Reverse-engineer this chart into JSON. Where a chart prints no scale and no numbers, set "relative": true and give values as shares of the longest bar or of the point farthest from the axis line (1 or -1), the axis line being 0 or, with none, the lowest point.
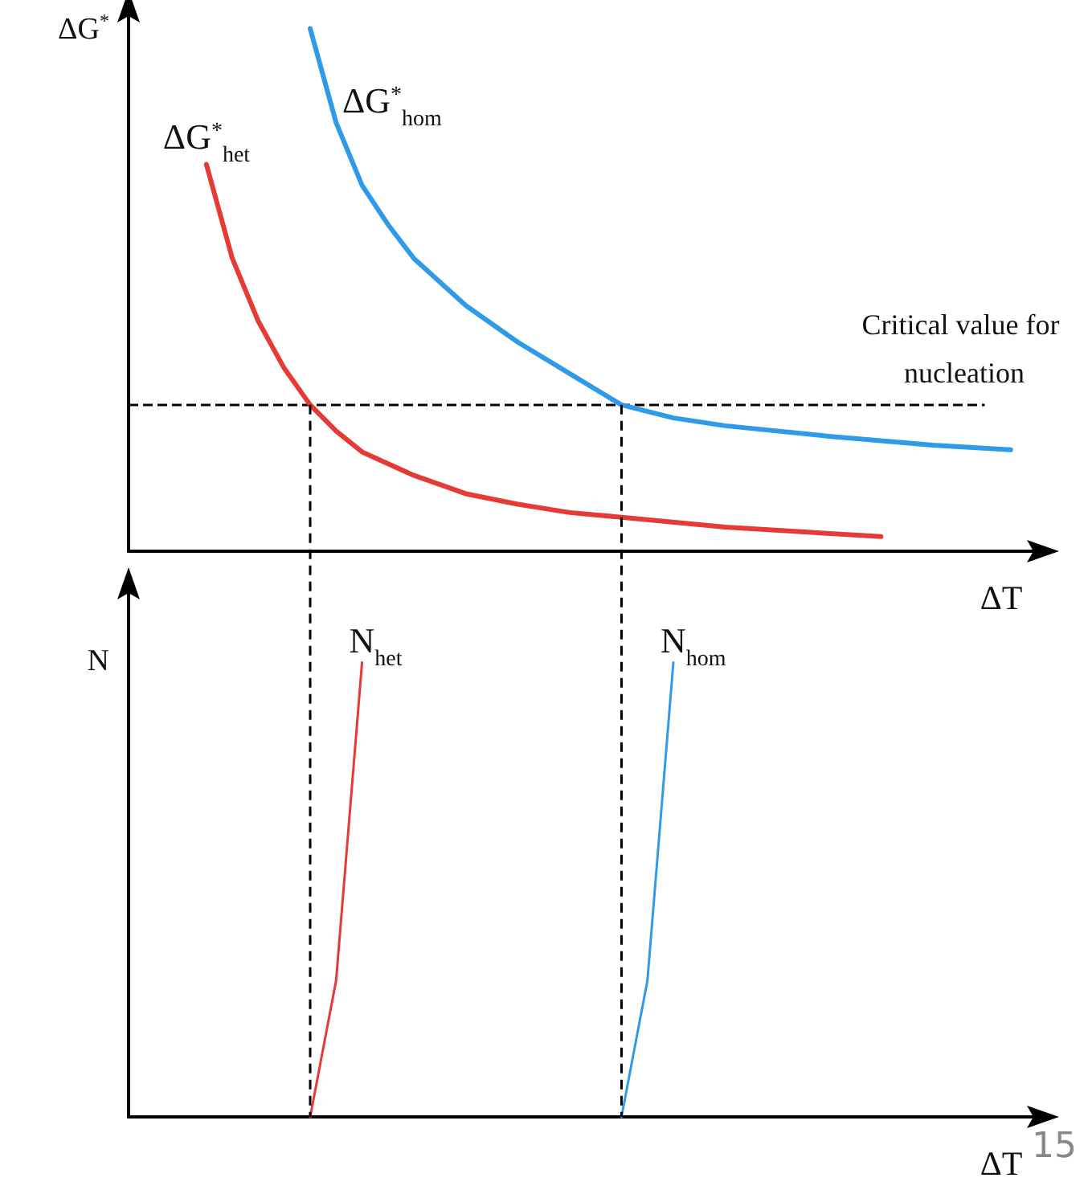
{
  "chart_data": [
    {
      "type": "line",
      "relative": true,
      "ylabel": "ΔG$^{*}$",
      "xlabel": "ΔT",
      "grid": false,
      "marker": "none",
      "line_style": "solid",
      "categories": [
        null,
        null,
        null,
        null,
        null,
        null,
        null,
        null,
        null,
        null,
        null,
        null,
        null,
        null,
        null,
        null,
        null,
        null,
        null,
        null,
        null,
        null,
        null,
        null,
        null,
        null,
        null,
        null,
        null,
        null,
        null,
        null,
        null,
        null,
        null,
        null
      ],
      "series": [
        {
          "name": "ΔG$^{*}$$_{het}$",
          "color": "#e53a35",
          "values": [
            null,
            null,
            null,
            0.74,
            0.56,
            0.44,
            0.35,
            0.28,
            0.23,
            0.19,
            null,
            0.145,
            null,
            0.11,
            null,
            0.09,
            null,
            0.074,
            null,
            0.065,
            null,
            null,
            null,
            0.046,
            null,
            null,
            null,
            null,
            null,
            0.028,
            null,
            null,
            null,
            null,
            null,
            null
          ]
        },
        {
          "name": "ΔG$^{*}$$_{hom}$",
          "color": "#2f9be8",
          "values": [
            null,
            null,
            null,
            null,
            null,
            null,
            null,
            1.0,
            0.82,
            0.7,
            0.625,
            0.56,
            0.515,
            0.47,
            null,
            0.4,
            null,
            0.34,
            null,
            0.28,
            null,
            0.255,
            null,
            0.24,
            null,
            null,
            null,
            0.22,
            null,
            null,
            null,
            0.203,
            null,
            null,
            0.194,
            null
          ]
        }
      ],
      "ref_lines": [
        {
          "axis": "y",
          "value": 0.28,
          "label": "Critical value for nucleation",
          "color": "#000000",
          "line_style": "dashed"
        }
      ]
    },
    {
      "type": "line",
      "relative": true,
      "ylabel": "N",
      "xlabel": "ΔT",
      "grid": false,
      "marker": "none",
      "line_style": "solid",
      "categories": [
        null,
        null,
        null,
        null,
        null,
        null,
        null,
        null,
        null,
        null,
        null,
        null,
        null,
        null,
        null,
        null,
        null,
        null,
        null,
        null,
        null,
        null,
        null,
        null,
        null,
        null,
        null,
        null,
        null,
        null,
        null,
        null,
        null,
        null,
        null,
        null
      ],
      "series": [
        {
          "name": "N$_{het}$",
          "color": "#e53a35",
          "values": [
            null,
            null,
            null,
            null,
            null,
            null,
            null,
            0,
            0.3,
            1.0,
            null,
            null,
            null,
            null,
            null,
            null,
            null,
            null,
            null,
            null,
            null,
            null,
            null,
            null,
            null,
            null,
            null,
            null,
            null,
            null,
            null,
            null,
            null,
            null,
            null,
            null
          ]
        },
        {
          "name": "N$_{hom}$",
          "color": "#2f9be8",
          "values": [
            null,
            null,
            null,
            null,
            null,
            null,
            null,
            null,
            null,
            null,
            null,
            null,
            null,
            null,
            null,
            null,
            null,
            null,
            null,
            0,
            0.3,
            1.0,
            null,
            null,
            null,
            null,
            null,
            null,
            null,
            null,
            null,
            null,
            null,
            null,
            null,
            null
          ]
        }
      ],
      "annotations": [
        "15"
      ]
    }
  ]
}
